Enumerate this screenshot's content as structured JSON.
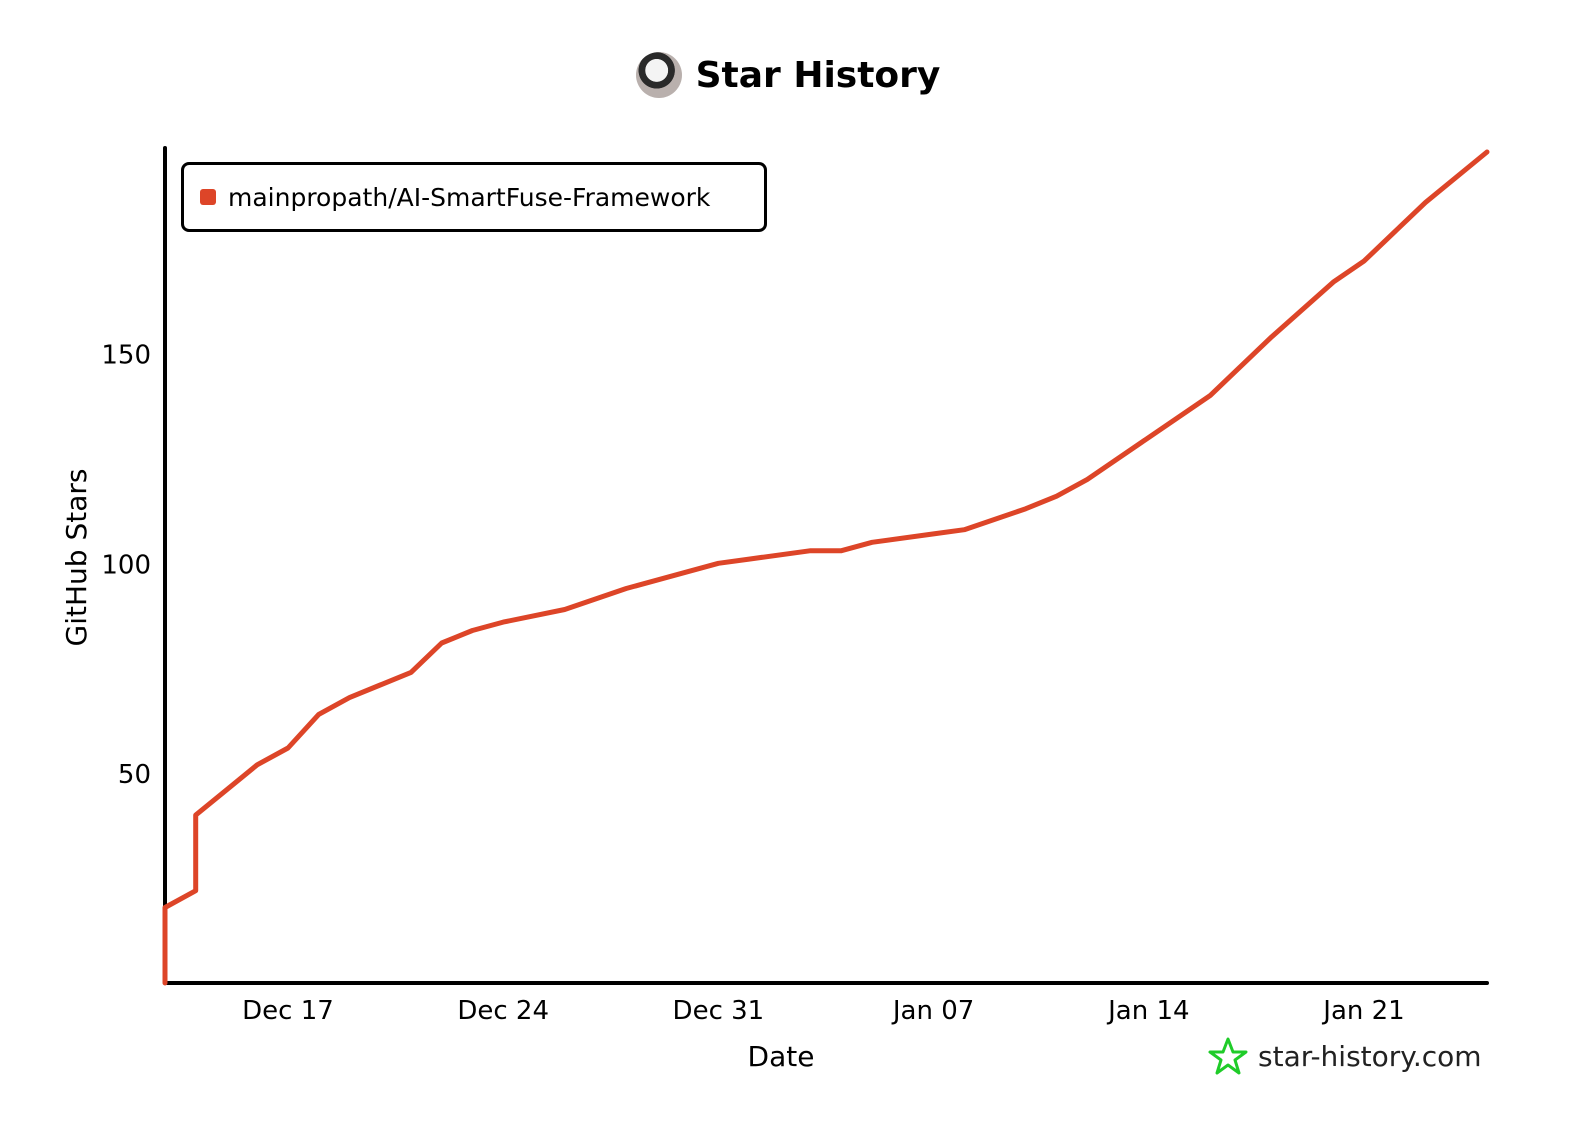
{
  "header": {
    "title": "Star History"
  },
  "watermark": {
    "text": "star-history.com"
  },
  "colors": {
    "series": "#dd4528",
    "axis": "#000000",
    "watermark": "#1fcc29"
  },
  "chart_data": {
    "type": "line",
    "xlabel": "Date",
    "ylabel": "GitHub Stars",
    "x_start": "2023-12-13",
    "x_end": "2024-01-25",
    "xticks": [
      {
        "date": "2023-12-17",
        "label": "Dec 17"
      },
      {
        "date": "2023-12-24",
        "label": "Dec 24"
      },
      {
        "date": "2023-12-31",
        "label": "Dec 31"
      },
      {
        "date": "2024-01-07",
        "label": "Jan 07"
      },
      {
        "date": "2024-01-14",
        "label": "Jan 14"
      },
      {
        "date": "2024-01-21",
        "label": "Jan 21"
      }
    ],
    "ylim": [
      0,
      198
    ],
    "yticks": [
      50,
      100,
      150
    ],
    "legend_position": "top-left",
    "series": [
      {
        "name": "mainpropath/AI-SmartFuse-Framework",
        "color": "#dd4528",
        "points": [
          {
            "x": "2023-12-13",
            "y": 0
          },
          {
            "x": "2023-12-13",
            "y": 18
          },
          {
            "x": "2023-12-14",
            "y": 22
          },
          {
            "x": "2023-12-14",
            "y": 40
          },
          {
            "x": "2023-12-15",
            "y": 46
          },
          {
            "x": "2023-12-16",
            "y": 52
          },
          {
            "x": "2023-12-17",
            "y": 56
          },
          {
            "x": "2023-12-18",
            "y": 64
          },
          {
            "x": "2023-12-19",
            "y": 68
          },
          {
            "x": "2023-12-20",
            "y": 71
          },
          {
            "x": "2023-12-21",
            "y": 74
          },
          {
            "x": "2023-12-22",
            "y": 81
          },
          {
            "x": "2023-12-23",
            "y": 84
          },
          {
            "x": "2023-12-24",
            "y": 86
          },
          {
            "x": "2023-12-26",
            "y": 89
          },
          {
            "x": "2023-12-28",
            "y": 94
          },
          {
            "x": "2023-12-30",
            "y": 98
          },
          {
            "x": "2023-12-31",
            "y": 100
          },
          {
            "x": "2024-01-01",
            "y": 101
          },
          {
            "x": "2024-01-03",
            "y": 103
          },
          {
            "x": "2024-01-04",
            "y": 103
          },
          {
            "x": "2024-01-05",
            "y": 105
          },
          {
            "x": "2024-01-07",
            "y": 107
          },
          {
            "x": "2024-01-08",
            "y": 108
          },
          {
            "x": "2024-01-10",
            "y": 113
          },
          {
            "x": "2024-01-11",
            "y": 116
          },
          {
            "x": "2024-01-12",
            "y": 120
          },
          {
            "x": "2024-01-14",
            "y": 130
          },
          {
            "x": "2024-01-16",
            "y": 140
          },
          {
            "x": "2024-01-18",
            "y": 154
          },
          {
            "x": "2024-01-20",
            "y": 167
          },
          {
            "x": "2024-01-21",
            "y": 172
          },
          {
            "x": "2024-01-22",
            "y": 179
          },
          {
            "x": "2024-01-23",
            "y": 186
          },
          {
            "x": "2024-01-25",
            "y": 198
          }
        ]
      }
    ]
  }
}
